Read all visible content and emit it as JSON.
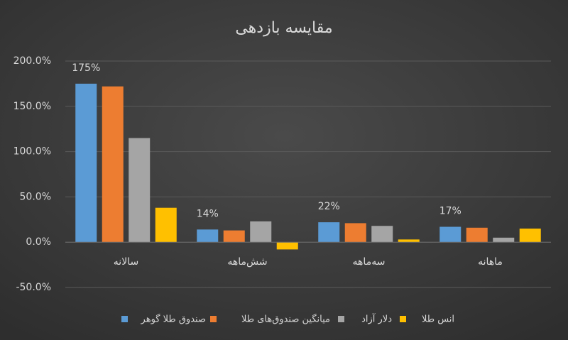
{
  "chart_data": {
    "type": "bar",
    "title": "مقایسه بازدهی",
    "categories": [
      "سالانه",
      "شش‌ماهه",
      "سه‌ماهه",
      "ماهانه"
    ],
    "series": [
      {
        "name": "صندوق طلا گوهر",
        "color": "#5b9bd5",
        "values": [
          175,
          14,
          22,
          17
        ],
        "value_labels": [
          "175%",
          "14%",
          "22%",
          "17%"
        ]
      },
      {
        "name": "میانگین صندوق‌های طلا",
        "color": "#ed7d31",
        "values": [
          172,
          13,
          21,
          16
        ]
      },
      {
        "name": "دلار آزاد",
        "color": "#a5a5a5",
        "values": [
          115,
          23,
          18,
          5
        ]
      },
      {
        "name": "انس طلا",
        "color": "#ffc000",
        "values": [
          38,
          -8,
          3,
          15
        ]
      }
    ],
    "ylim": [
      -50,
      200
    ],
    "yticks": [
      {
        "value": -50,
        "label": "-50.0%"
      },
      {
        "value": 0,
        "label": "0.0%"
      },
      {
        "value": 50,
        "label": "50.0%"
      },
      {
        "value": 100,
        "label": "100.0%"
      },
      {
        "value": 150,
        "label": "150.0%"
      },
      {
        "value": 200,
        "label": "200.0%"
      }
    ],
    "grid": true,
    "legend": "bottom"
  }
}
